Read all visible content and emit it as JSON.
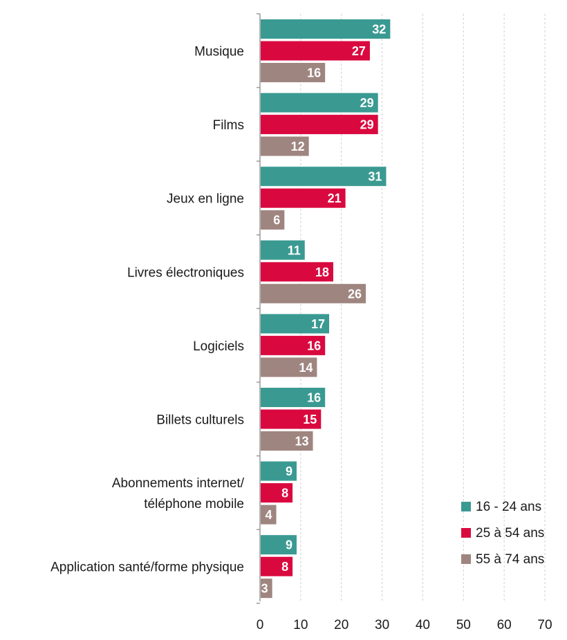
{
  "chart_data": {
    "type": "bar",
    "orientation": "horizontal",
    "title": "",
    "xlabel": "",
    "ylabel": "",
    "xlim": [
      0,
      70
    ],
    "x_ticks": [
      0,
      10,
      20,
      30,
      40,
      50,
      60,
      70
    ],
    "grid": true,
    "legend_position": "bottom-right",
    "categories": [
      [
        "Musique"
      ],
      [
        "Films"
      ],
      [
        "Jeux en ligne"
      ],
      [
        "Livres électroniques"
      ],
      [
        "Logiciels"
      ],
      [
        "Billets culturels"
      ],
      [
        "Abonnements internet/",
        "téléphone mobile"
      ],
      [
        "Application santé/forme physique"
      ]
    ],
    "series": [
      {
        "name": "16 - 24 ans",
        "color": "#3a9a92",
        "values": [
          32,
          29,
          31,
          11,
          17,
          16,
          9,
          9
        ]
      },
      {
        "name": "25 à 54 ans",
        "color": "#d9093f",
        "values": [
          27,
          29,
          21,
          18,
          16,
          15,
          8,
          8
        ]
      },
      {
        "name": "55 à 74 ans",
        "color": "#9f8580",
        "values": [
          16,
          12,
          6,
          26,
          14,
          13,
          4,
          3
        ]
      }
    ]
  }
}
